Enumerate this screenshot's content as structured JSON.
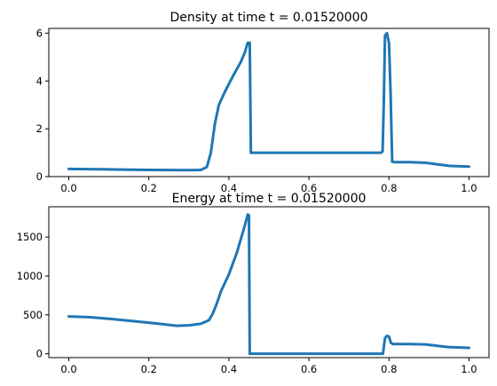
{
  "chart_data": [
    {
      "type": "line",
      "title": "Density at time t =     0.01520000",
      "xlabel": "",
      "ylabel": "",
      "xlim": [
        -0.05,
        1.05
      ],
      "ylim": [
        0,
        6.2
      ],
      "xticks": [
        0.0,
        0.2,
        0.4,
        0.6,
        0.8,
        1.0
      ],
      "xtick_labels": [
        "0.0",
        "0.2",
        "0.4",
        "0.6",
        "0.8",
        "1.0"
      ],
      "yticks": [
        0,
        2,
        4,
        6
      ],
      "ytick_labels": [
        "0",
        "2",
        "4",
        "6"
      ],
      "grid": false,
      "line_color": "#1f77b4",
      "series": [
        {
          "x": [
            0.0,
            0.1,
            0.2,
            0.3,
            0.33,
            0.345,
            0.355,
            0.365,
            0.375,
            0.39,
            0.41,
            0.43,
            0.44,
            0.447,
            0.452,
            0.455,
            0.46,
            0.5,
            0.6,
            0.7,
            0.78,
            0.784,
            0.787,
            0.79,
            0.795,
            0.8,
            0.804,
            0.808,
            0.815,
            0.85,
            0.89,
            0.95,
            1.0
          ],
          "y": [
            0.32,
            0.3,
            0.28,
            0.27,
            0.28,
            0.4,
            1.0,
            2.2,
            3.0,
            3.55,
            4.2,
            4.8,
            5.2,
            5.6,
            5.6,
            1.0,
            1.0,
            1.0,
            1.0,
            1.0,
            1.0,
            1.05,
            3.0,
            5.9,
            6.0,
            5.6,
            3.5,
            0.62,
            0.6,
            0.6,
            0.58,
            0.45,
            0.42
          ]
        }
      ]
    },
    {
      "type": "line",
      "title": "Energy at time t =     0.01520000",
      "xlabel": "",
      "ylabel": "",
      "xlim": [
        -0.05,
        1.05
      ],
      "ylim": [
        -50,
        1890
      ],
      "xticks": [
        0.0,
        0.2,
        0.4,
        0.6,
        0.8,
        1.0
      ],
      "xtick_labels": [
        "0.0",
        "0.2",
        "0.4",
        "0.6",
        "0.8",
        "1.0"
      ],
      "yticks": [
        0,
        500,
        1000,
        1500
      ],
      "ytick_labels": [
        "0",
        "500",
        "1000",
        "1500"
      ],
      "grid": false,
      "line_color": "#1f77b4",
      "series": [
        {
          "x": [
            0.0,
            0.05,
            0.1,
            0.2,
            0.27,
            0.3,
            0.33,
            0.35,
            0.36,
            0.37,
            0.38,
            0.4,
            0.42,
            0.44,
            0.447,
            0.45,
            0.452,
            0.46,
            0.5,
            0.6,
            0.7,
            0.785,
            0.79,
            0.795,
            0.8,
            0.805,
            0.81,
            0.85,
            0.89,
            0.95,
            1.0
          ],
          "y": [
            480,
            470,
            450,
            400,
            360,
            365,
            385,
            430,
            520,
            650,
            800,
            1020,
            1300,
            1650,
            1790,
            1780,
            0,
            0,
            0,
            0,
            0,
            0,
            200,
            230,
            220,
            140,
            125,
            125,
            120,
            85,
            75
          ]
        }
      ]
    }
  ]
}
